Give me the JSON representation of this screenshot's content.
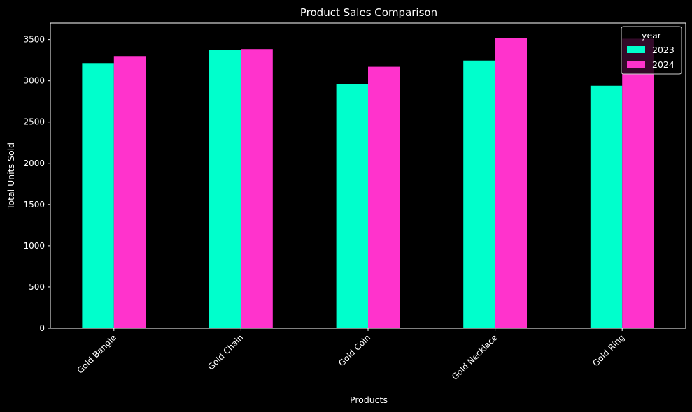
{
  "chart_data": {
    "type": "bar",
    "title": "Product Sales Comparison",
    "xlabel": "Products",
    "ylabel": "Total Units Sold",
    "categories": [
      "Gold Bangle",
      "Gold Chain",
      "Gold Coin",
      "Gold Necklace",
      "Gold Ring"
    ],
    "series": [
      {
        "name": "2023",
        "color": "#00ffcc",
        "values": [
          3215,
          3370,
          2955,
          3245,
          2940
        ]
      },
      {
        "name": "2024",
        "color": "#ff33cc",
        "values": [
          3300,
          3385,
          3170,
          3520,
          3510
        ]
      }
    ],
    "ylim": [
      0,
      3700
    ],
    "yticks": [
      0,
      500,
      1000,
      1500,
      2000,
      2500,
      3000,
      3500
    ],
    "grid": false,
    "legend": {
      "title": "year",
      "position": "top-right"
    },
    "x_tick_rotation": 45,
    "background": "#000000",
    "axis_color": "#ffffff"
  }
}
